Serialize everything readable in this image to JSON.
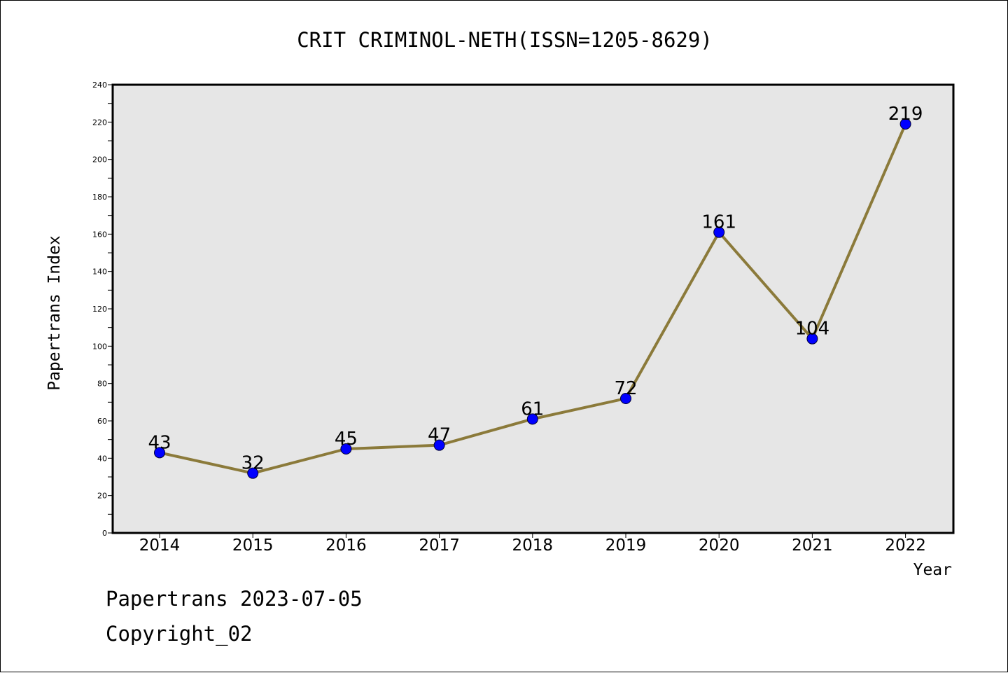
{
  "chart_data": {
    "type": "line",
    "title": "CRIT CRIMINOL-NETH(ISSN=1205-8629)",
    "xlabel": "Year",
    "ylabel": "Papertrans Index",
    "categories": [
      "2014",
      "2015",
      "2016",
      "2017",
      "2018",
      "2019",
      "2020",
      "2021",
      "2022"
    ],
    "values": [
      43,
      32,
      45,
      47,
      61,
      72,
      161,
      104,
      219
    ],
    "ylim": [
      0,
      240
    ],
    "yticks": [
      0,
      20,
      40,
      60,
      80,
      100,
      120,
      140,
      160,
      180,
      200,
      220,
      240
    ],
    "grid": false,
    "line_color": "#8b7a3a",
    "marker_color": "#0000ff",
    "plot_background": "#e6e6e6"
  },
  "footer": {
    "line1": "Papertrans 2023-07-05",
    "line2": "Copyright_02"
  }
}
